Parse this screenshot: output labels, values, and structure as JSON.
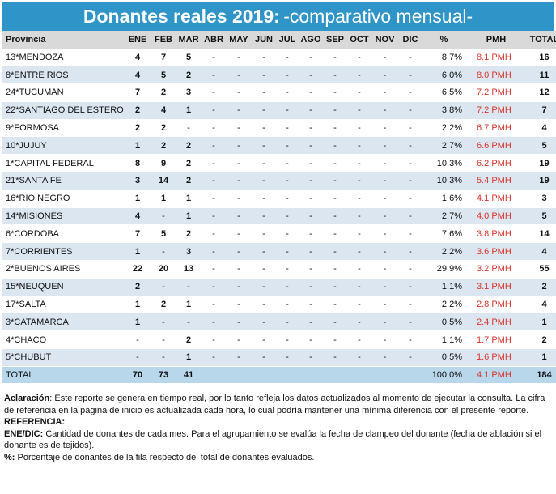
{
  "title": {
    "bold": "Donantes reales 2019:",
    "light": "-comparativo mensual-"
  },
  "columns": [
    "Provincia",
    "ENE",
    "FEB",
    "MAR",
    "ABR",
    "MAY",
    "JUN",
    "JUL",
    "AGO",
    "SEP",
    "OCT",
    "NOV",
    "DIC",
    "%",
    "PMH",
    "TOTAL"
  ],
  "rows": [
    {
      "provincia": "13*MENDOZA",
      "months": [
        "4",
        "7",
        "5",
        "-",
        "-",
        "-",
        "-",
        "-",
        "-",
        "-",
        "-",
        "-"
      ],
      "pct": "8.7%",
      "pmh": "8.1 PMH",
      "total": "16"
    },
    {
      "provincia": "8*ENTRE RIOS",
      "months": [
        "4",
        "5",
        "2",
        "-",
        "-",
        "-",
        "-",
        "-",
        "-",
        "-",
        "-",
        "-"
      ],
      "pct": "6.0%",
      "pmh": "8.0 PMH",
      "total": "11"
    },
    {
      "provincia": "24*TUCUMAN",
      "months": [
        "7",
        "2",
        "3",
        "-",
        "-",
        "-",
        "-",
        "-",
        "-",
        "-",
        "-",
        "-"
      ],
      "pct": "6.5%",
      "pmh": "7.2 PMH",
      "total": "12"
    },
    {
      "provincia": "22*SANTIAGO DEL ESTERO",
      "months": [
        "2",
        "4",
        "1",
        "-",
        "-",
        "-",
        "-",
        "-",
        "-",
        "-",
        "-",
        "-"
      ],
      "pct": "3.8%",
      "pmh": "7.2 PMH",
      "total": "7"
    },
    {
      "provincia": "9*FORMOSA",
      "months": [
        "2",
        "2",
        "-",
        "-",
        "-",
        "-",
        "-",
        "-",
        "-",
        "-",
        "-",
        "-"
      ],
      "pct": "2.2%",
      "pmh": "6.7 PMH",
      "total": "4"
    },
    {
      "provincia": "10*JUJUY",
      "months": [
        "1",
        "2",
        "2",
        "-",
        "-",
        "-",
        "-",
        "-",
        "-",
        "-",
        "-",
        "-"
      ],
      "pct": "2.7%",
      "pmh": "6.6 PMH",
      "total": "5"
    },
    {
      "provincia": "1*CAPITAL FEDERAL",
      "months": [
        "8",
        "9",
        "2",
        "-",
        "-",
        "-",
        "-",
        "-",
        "-",
        "-",
        "-",
        "-"
      ],
      "pct": "10.3%",
      "pmh": "6.2 PMH",
      "total": "19"
    },
    {
      "provincia": "21*SANTA FE",
      "months": [
        "3",
        "14",
        "2",
        "-",
        "-",
        "-",
        "-",
        "-",
        "-",
        "-",
        "-",
        "-"
      ],
      "pct": "10.3%",
      "pmh": "5.4 PMH",
      "total": "19"
    },
    {
      "provincia": "16*RIO NEGRO",
      "months": [
        "1",
        "1",
        "1",
        "-",
        "-",
        "-",
        "-",
        "-",
        "-",
        "-",
        "-",
        "-"
      ],
      "pct": "1.6%",
      "pmh": "4.1 PMH",
      "total": "3"
    },
    {
      "provincia": "14*MISIONES",
      "months": [
        "4",
        "-",
        "1",
        "-",
        "-",
        "-",
        "-",
        "-",
        "-",
        "-",
        "-",
        "-"
      ],
      "pct": "2.7%",
      "pmh": "4.0 PMH",
      "total": "5"
    },
    {
      "provincia": "6*CORDOBA",
      "months": [
        "7",
        "5",
        "2",
        "-",
        "-",
        "-",
        "-",
        "-",
        "-",
        "-",
        "-",
        "-"
      ],
      "pct": "7.6%",
      "pmh": "3.8 PMH",
      "total": "14"
    },
    {
      "provincia": "7*CORRIENTES",
      "months": [
        "1",
        "-",
        "3",
        "-",
        "-",
        "-",
        "-",
        "-",
        "-",
        "-",
        "-",
        "-"
      ],
      "pct": "2.2%",
      "pmh": "3.6 PMH",
      "total": "4"
    },
    {
      "provincia": "2*BUENOS AIRES",
      "months": [
        "22",
        "20",
        "13",
        "-",
        "-",
        "-",
        "-",
        "-",
        "-",
        "-",
        "-",
        "-"
      ],
      "pct": "29.9%",
      "pmh": "3.2 PMH",
      "total": "55"
    },
    {
      "provincia": "15*NEUQUEN",
      "months": [
        "2",
        "-",
        "-",
        "-",
        "-",
        "-",
        "-",
        "-",
        "-",
        "-",
        "-",
        "-"
      ],
      "pct": "1.1%",
      "pmh": "3.1 PMH",
      "total": "2"
    },
    {
      "provincia": "17*SALTA",
      "months": [
        "1",
        "2",
        "1",
        "-",
        "-",
        "-",
        "-",
        "-",
        "-",
        "-",
        "-",
        "-"
      ],
      "pct": "2.2%",
      "pmh": "2.8 PMH",
      "total": "4"
    },
    {
      "provincia": "3*CATAMARCA",
      "months": [
        "1",
        "-",
        "-",
        "-",
        "-",
        "-",
        "-",
        "-",
        "-",
        "-",
        "-",
        "-"
      ],
      "pct": "0.5%",
      "pmh": "2.4 PMH",
      "total": "1"
    },
    {
      "provincia": "4*CHACO",
      "months": [
        "-",
        "-",
        "2",
        "-",
        "-",
        "-",
        "-",
        "-",
        "-",
        "-",
        "-",
        "-"
      ],
      "pct": "1.1%",
      "pmh": "1.7 PMH",
      "total": "2"
    },
    {
      "provincia": "5*CHUBUT",
      "months": [
        "-",
        "-",
        "1",
        "-",
        "-",
        "-",
        "-",
        "-",
        "-",
        "-",
        "-",
        "-"
      ],
      "pct": "0.5%",
      "pmh": "1.6 PMH",
      "total": "1"
    }
  ],
  "total_row": {
    "provincia": "TOTAL",
    "months": [
      "70",
      "73",
      "41",
      "",
      "",
      "",
      "",
      "",
      "",
      "",
      "",
      ""
    ],
    "pct": "100.0%",
    "pmh": "4.1 PMH",
    "total": "184"
  },
  "notes": {
    "aclaracion_label": "Aclaración",
    "aclaracion_text": ": Este reporte se genera en tiempo real, por lo tanto refleja los datos actualizados al momento de ejecutar la consulta. La cifra de referencia en la página de inicio es actualizada cada hora, lo cual podría mantener una mínima diferencia con el presente reporte.",
    "referencia_label": "REFERENCIA:",
    "enedic_label": "ENE/DIC:",
    "enedic_text": " Cantidad de donantes de cada mes. Para el agrupamiento se evalúa la fecha de clampeo del donante (fecha de ablación si el donante es de tejidos).",
    "pct_label": "%:",
    "pct_text": " Porcentaje de donantes de la fila respecto del total de donantes evaluados."
  },
  "colors": {
    "header_blue": "#2f95c9",
    "row_alt": "#dce6f1",
    "total_row": "#b8d7ea",
    "pmh_red": "#d9342b"
  }
}
